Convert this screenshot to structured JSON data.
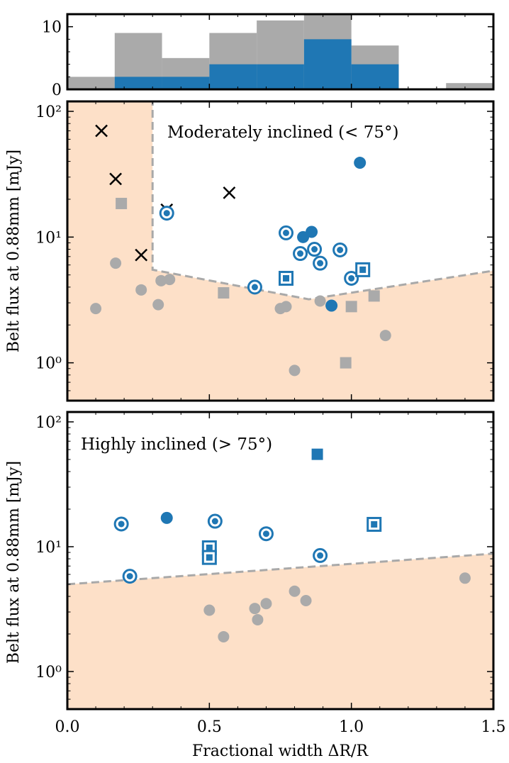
{
  "colors": {
    "blue": "#1f77b4",
    "gray": "#aaaaaa",
    "excluded": "#fde0c8",
    "dashed": "#a9a9a9"
  },
  "chart_data": [
    {
      "type": "histogram",
      "name": "width-histogram",
      "xlim": [
        0.0,
        1.5
      ],
      "ylim": [
        0,
        12
      ],
      "yticks": [
        0,
        10
      ],
      "bin_edges": [
        0.0,
        0.1667,
        0.3333,
        0.5,
        0.6667,
        0.8333,
        1.0,
        1.1667,
        1.3333,
        1.5
      ],
      "series": [
        {
          "name": "all",
          "color": "gray",
          "counts": [
            2,
            9,
            5,
            9,
            11,
            12,
            7,
            0,
            1
          ]
        },
        {
          "name": "resolved",
          "color": "blue",
          "counts": [
            0,
            2,
            2,
            4,
            4,
            8,
            4,
            0,
            0
          ]
        }
      ]
    },
    {
      "type": "scatter",
      "name": "moderately-inclined",
      "title": "Moderately inclined (< 75°)",
      "xlim": [
        0.0,
        1.5
      ],
      "ylim": [
        0.5,
        120
      ],
      "yscale": "log",
      "ytick_labels": [
        "10⁰",
        "10¹",
        "10²"
      ],
      "ylabel": "Belt flux at 0.88mm [mJy]",
      "excluded_boundary": [
        [
          0.3,
          200
        ],
        [
          0.3,
          5.5
        ],
        [
          0.55,
          4.3
        ],
        [
          0.85,
          3.2
        ],
        [
          1.5,
          5.4
        ]
      ],
      "points": {
        "gray_circle": [
          [
            0.1,
            2.7
          ],
          [
            0.17,
            6.2
          ],
          [
            0.26,
            3.8
          ],
          [
            0.32,
            2.9
          ],
          [
            0.33,
            4.5
          ],
          [
            0.36,
            4.6
          ],
          [
            0.75,
            2.7
          ],
          [
            0.77,
            2.8
          ],
          [
            0.8,
            0.87
          ],
          [
            0.89,
            3.1
          ],
          [
            1.12,
            1.65
          ]
        ],
        "gray_square": [
          [
            0.19,
            18.5
          ],
          [
            0.55,
            3.6
          ],
          [
            0.98,
            1.0
          ],
          [
            1.0,
            2.8
          ],
          [
            1.08,
            3.4
          ]
        ],
        "cross": [
          [
            0.12,
            70
          ],
          [
            0.17,
            29
          ],
          [
            0.26,
            7.2
          ],
          [
            0.35,
            16.5
          ],
          [
            0.57,
            22.5
          ]
        ],
        "blue_filled_circle": [
          [
            0.83,
            10.0
          ],
          [
            0.86,
            11.0
          ],
          [
            0.93,
            2.85
          ],
          [
            1.03,
            39
          ]
        ],
        "blue_ringed_circle": [
          [
            0.35,
            15.5
          ],
          [
            0.66,
            4.0
          ],
          [
            0.77,
            10.8
          ],
          [
            0.82,
            7.4
          ],
          [
            0.87,
            8.0
          ],
          [
            0.89,
            6.2
          ],
          [
            0.96,
            7.9
          ],
          [
            1.0,
            4.7
          ]
        ],
        "blue_ringed_square": [
          [
            0.77,
            4.7
          ],
          [
            1.04,
            5.5
          ]
        ]
      }
    },
    {
      "type": "scatter",
      "name": "highly-inclined",
      "title": "Highly inclined (> 75°)",
      "xlim": [
        0.0,
        1.5
      ],
      "ylim": [
        0.5,
        120
      ],
      "yscale": "log",
      "xticks": [
        0.0,
        0.5,
        1.0,
        1.5
      ],
      "xtick_labels": [
        "0.0",
        "0.5",
        "1.0",
        "1.5"
      ],
      "ytick_labels": [
        "10⁰",
        "10¹",
        "10²"
      ],
      "ylabel": "Belt flux at 0.88mm [mJy]",
      "xlabel": "Fractional width ΔR/R",
      "excluded_boundary": [
        [
          0.0,
          5.0
        ],
        [
          1.5,
          8.8
        ]
      ],
      "points": {
        "gray_circle": [
          [
            0.5,
            3.1
          ],
          [
            0.55,
            1.9
          ],
          [
            0.66,
            3.2
          ],
          [
            0.67,
            2.6
          ],
          [
            0.7,
            3.5
          ],
          [
            0.8,
            4.4
          ],
          [
            0.84,
            3.7
          ],
          [
            1.4,
            5.6
          ]
        ],
        "blue_filled_circle": [
          [
            0.35,
            17
          ]
        ],
        "blue_filled_square": [
          [
            0.88,
            55
          ]
        ],
        "blue_ringed_circle": [
          [
            0.19,
            15.2
          ],
          [
            0.22,
            5.8
          ],
          [
            0.52,
            16.0
          ],
          [
            0.7,
            12.7
          ],
          [
            0.89,
            8.5
          ]
        ],
        "blue_ringed_square": [
          [
            0.5,
            9.8
          ],
          [
            0.5,
            8.2
          ],
          [
            1.08,
            15.1
          ]
        ]
      }
    }
  ]
}
